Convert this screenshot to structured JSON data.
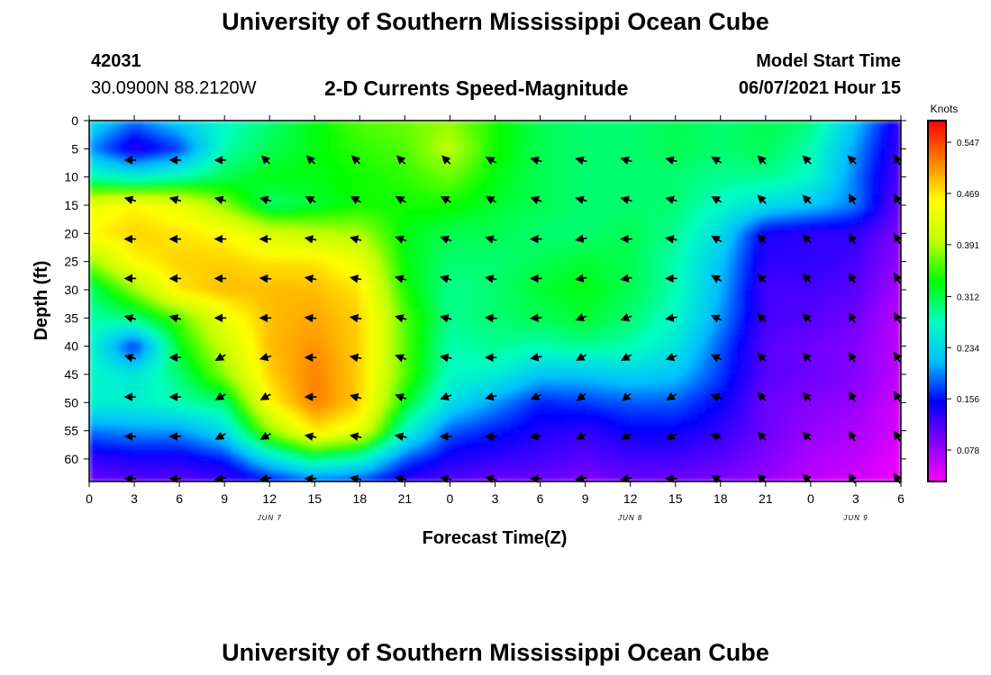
{
  "header": {
    "title_top": "University of Southern Mississippi Ocean Cube",
    "title_bottom": "University of Southern Mississippi Ocean Cube",
    "station_id": "42031",
    "location": "30.0900N  88.2120W",
    "plot_title": "2-D Currents Speed-Magnitude",
    "model_start_label": "Model Start Time",
    "model_start_value": "06/07/2021 Hour 15"
  },
  "chart_data": {
    "type": "heatmap",
    "title": "2-D Currents Speed-Magnitude",
    "xlabel": "Forecast Time(Z)",
    "ylabel": "Depth (ft)",
    "x_tick_labels": [
      "0",
      "3",
      "6",
      "9",
      "12",
      "15",
      "18",
      "21",
      "0",
      "3",
      "6",
      "9",
      "12",
      "15",
      "18",
      "21",
      "0",
      "3",
      "6"
    ],
    "x_hours": [
      0,
      3,
      6,
      9,
      12,
      15,
      18,
      21,
      24,
      27,
      30,
      33,
      36,
      39,
      42,
      45,
      48,
      51,
      54
    ],
    "xlim": [
      0,
      54
    ],
    "date_labels": [
      {
        "text": "JUN 7",
        "hour": 12
      },
      {
        "text": "JUN 8",
        "hour": 36
      },
      {
        "text": "JUN 9",
        "hour": 51
      }
    ],
    "y_ticks": [
      0,
      5,
      10,
      15,
      20,
      25,
      30,
      35,
      40,
      45,
      50,
      55,
      60
    ],
    "ylim": [
      0,
      64
    ],
    "y_inverted": true,
    "colorbar": {
      "unit_label": "Knots",
      "tick_labels": [
        "0.547",
        "0.469",
        "0.391",
        "0.312",
        "0.234",
        "0.156",
        "0.078"
      ],
      "tick_values": [
        0.547,
        0.469,
        0.391,
        0.312,
        0.234,
        0.156,
        0.078
      ],
      "range": [
        0.03,
        0.58
      ],
      "colors": [
        "#ff00ff",
        "#8000ff",
        "#0000ff",
        "#00c0ff",
        "#00ffc0",
        "#00ff00",
        "#c0ff00",
        "#ffff00",
        "#ff8000",
        "#ff0000"
      ]
    },
    "speed_grid": {
      "x_hours": [
        0,
        3,
        6,
        9,
        12,
        15,
        18,
        21,
        24,
        27,
        30,
        33,
        36,
        39,
        42,
        45,
        48,
        51,
        54
      ],
      "depths_ft": [
        0,
        5,
        10,
        15,
        20,
        25,
        30,
        35,
        40,
        45,
        50,
        55,
        60,
        64
      ],
      "values": [
        [
          0.24,
          0.19,
          0.23,
          0.27,
          0.3,
          0.33,
          0.36,
          0.37,
          0.38,
          0.34,
          0.31,
          0.3,
          0.3,
          0.31,
          0.3,
          0.31,
          0.3,
          0.22,
          0.13
        ],
        [
          0.2,
          0.13,
          0.17,
          0.28,
          0.31,
          0.33,
          0.35,
          0.36,
          0.4,
          0.34,
          0.31,
          0.3,
          0.3,
          0.31,
          0.3,
          0.31,
          0.28,
          0.2,
          0.12
        ],
        [
          0.28,
          0.26,
          0.28,
          0.31,
          0.33,
          0.33,
          0.34,
          0.35,
          0.37,
          0.33,
          0.31,
          0.3,
          0.3,
          0.3,
          0.29,
          0.29,
          0.27,
          0.19,
          0.11
        ],
        [
          0.44,
          0.46,
          0.44,
          0.38,
          0.3,
          0.32,
          0.34,
          0.34,
          0.34,
          0.32,
          0.31,
          0.3,
          0.3,
          0.3,
          0.27,
          0.24,
          0.22,
          0.19,
          0.1
        ],
        [
          0.46,
          0.48,
          0.47,
          0.46,
          0.42,
          0.4,
          0.39,
          0.33,
          0.31,
          0.31,
          0.3,
          0.3,
          0.31,
          0.29,
          0.24,
          0.14,
          0.13,
          0.13,
          0.09
        ],
        [
          0.38,
          0.46,
          0.48,
          0.48,
          0.47,
          0.47,
          0.44,
          0.33,
          0.3,
          0.3,
          0.31,
          0.32,
          0.31,
          0.28,
          0.22,
          0.13,
          0.13,
          0.12,
          0.08
        ],
        [
          0.3,
          0.38,
          0.47,
          0.49,
          0.49,
          0.49,
          0.47,
          0.34,
          0.29,
          0.3,
          0.32,
          0.33,
          0.31,
          0.28,
          0.21,
          0.12,
          0.12,
          0.11,
          0.07
        ],
        [
          0.28,
          0.3,
          0.36,
          0.44,
          0.49,
          0.5,
          0.48,
          0.36,
          0.29,
          0.3,
          0.31,
          0.32,
          0.3,
          0.27,
          0.2,
          0.12,
          0.11,
          0.1,
          0.06
        ],
        [
          0.27,
          0.16,
          0.33,
          0.41,
          0.49,
          0.51,
          0.48,
          0.36,
          0.28,
          0.29,
          0.28,
          0.29,
          0.28,
          0.25,
          0.18,
          0.11,
          0.1,
          0.09,
          0.06
        ],
        [
          0.27,
          0.25,
          0.3,
          0.38,
          0.48,
          0.52,
          0.48,
          0.36,
          0.27,
          0.26,
          0.22,
          0.22,
          0.23,
          0.22,
          0.17,
          0.11,
          0.1,
          0.09,
          0.06
        ],
        [
          0.26,
          0.26,
          0.28,
          0.3,
          0.46,
          0.52,
          0.48,
          0.33,
          0.24,
          0.2,
          0.16,
          0.17,
          0.18,
          0.18,
          0.15,
          0.1,
          0.09,
          0.08,
          0.05
        ],
        [
          0.19,
          0.2,
          0.2,
          0.24,
          0.38,
          0.47,
          0.44,
          0.27,
          0.18,
          0.16,
          0.14,
          0.13,
          0.15,
          0.15,
          0.13,
          0.1,
          0.08,
          0.07,
          0.05
        ],
        [
          0.13,
          0.14,
          0.14,
          0.16,
          0.24,
          0.3,
          0.27,
          0.18,
          0.14,
          0.13,
          0.12,
          0.11,
          0.12,
          0.12,
          0.11,
          0.09,
          0.07,
          0.06,
          0.04
        ],
        [
          0.1,
          0.11,
          0.11,
          0.12,
          0.15,
          0.18,
          0.17,
          0.13,
          0.11,
          0.1,
          0.1,
          0.09,
          0.1,
          0.1,
          0.09,
          0.08,
          0.06,
          0.05,
          0.04
        ]
      ]
    },
    "vectors": {
      "x_hours": [
        3,
        6,
        9,
        12,
        15,
        18,
        21,
        24,
        27,
        30,
        33,
        36,
        39,
        42,
        45,
        48,
        51,
        54
      ],
      "depths_ft": [
        7,
        14,
        21,
        28,
        35,
        42,
        49,
        56,
        63.5
      ],
      "direction_deg": [
        [
          270,
          270,
          270,
          315,
          315,
          315,
          315,
          315,
          300,
          285,
          285,
          285,
          285,
          300,
          315,
          315,
          315,
          330
        ],
        [
          285,
          285,
          285,
          285,
          300,
          300,
          300,
          300,
          300,
          290,
          285,
          285,
          285,
          300,
          315,
          315,
          330,
          330
        ],
        [
          270,
          270,
          270,
          270,
          280,
          285,
          290,
          290,
          285,
          270,
          260,
          270,
          280,
          300,
          315,
          315,
          330,
          330
        ],
        [
          270,
          270,
          270,
          275,
          280,
          280,
          285,
          285,
          280,
          270,
          260,
          260,
          270,
          300,
          315,
          315,
          330,
          330
        ],
        [
          285,
          285,
          270,
          270,
          275,
          280,
          285,
          285,
          275,
          265,
          250,
          250,
          260,
          295,
          315,
          315,
          330,
          330
        ],
        [
          285,
          270,
          240,
          255,
          270,
          280,
          290,
          280,
          270,
          260,
          240,
          240,
          250,
          295,
          315,
          315,
          330,
          330
        ],
        [
          270,
          270,
          240,
          240,
          270,
          285,
          290,
          250,
          255,
          245,
          230,
          230,
          240,
          290,
          315,
          315,
          330,
          330
        ],
        [
          270,
          270,
          240,
          240,
          280,
          280,
          280,
          270,
          270,
          260,
          240,
          240,
          240,
          290,
          315,
          315,
          330,
          330
        ],
        [
          270,
          270,
          260,
          260,
          270,
          280,
          280,
          280,
          285,
          270,
          260,
          260,
          270,
          300,
          315,
          315,
          330,
          330
        ]
      ]
    }
  }
}
